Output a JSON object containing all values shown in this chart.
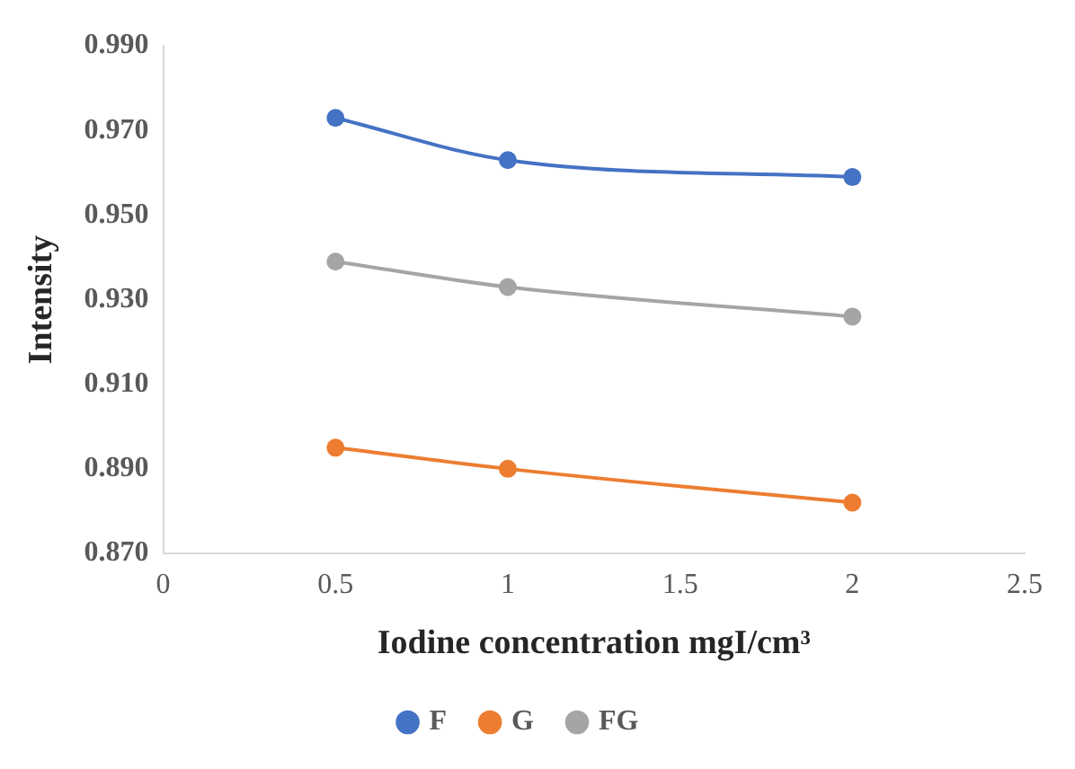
{
  "chart_data": {
    "type": "line",
    "xlabel": "Iodine concentration mgI/cm³",
    "ylabel": "Intensity",
    "x": [
      0.5,
      1,
      2
    ],
    "series": [
      {
        "name": "F",
        "color": "#4472c4",
        "values": [
          0.973,
          0.963,
          0.959
        ]
      },
      {
        "name": "G",
        "color": "#ed7d31",
        "values": [
          0.895,
          0.89,
          0.882
        ]
      },
      {
        "name": "FG",
        "color": "#a5a5a5",
        "values": [
          0.939,
          0.933,
          0.926
        ]
      }
    ],
    "xlim": [
      0,
      2.5
    ],
    "xticks": [
      0,
      0.5,
      1,
      1.5,
      2,
      2.5
    ],
    "ylim": [
      0.87,
      0.99
    ],
    "yticks": [
      {
        "value": 0.87,
        "label": "0.870"
      },
      {
        "value": 0.89,
        "label": "0.890"
      },
      {
        "value": 0.91,
        "label": "0.910"
      },
      {
        "value": 0.93,
        "label": "0.930"
      },
      {
        "value": 0.95,
        "label": "0.950"
      },
      {
        "value": 0.97,
        "label": "0.970"
      },
      {
        "value": 0.99,
        "label": "0.990"
      }
    ],
    "grid": false,
    "legend": "bottom",
    "marker": "circle",
    "line_style": "solid"
  }
}
